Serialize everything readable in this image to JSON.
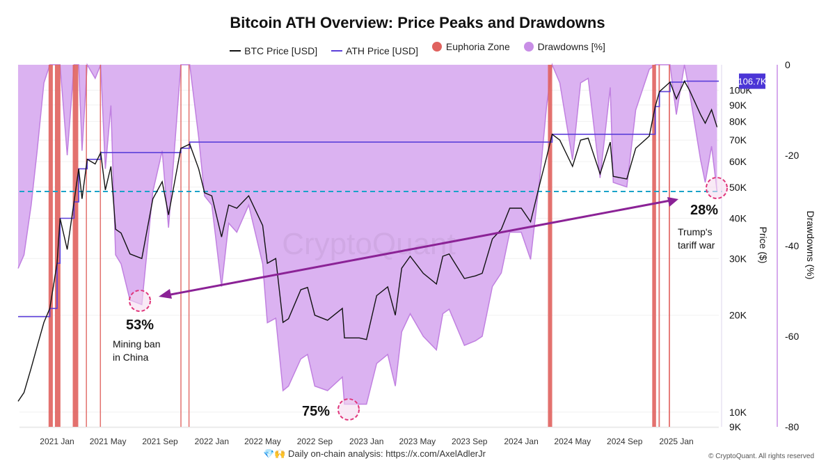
{
  "chart_data": {
    "type": "line",
    "title": "Bitcoin ATH Overview: Price Peaks and Drawdowns",
    "legend": [
      {
        "name": "BTC Price [USD]",
        "color": "#111111"
      },
      {
        "name": "ATH Price [USD]",
        "color": "#5b3fd9"
      },
      {
        "name": "Euphoria Zone",
        "color": "#e0625e"
      },
      {
        "name": "Drawdowns [%]",
        "color": "#c88ee6"
      }
    ],
    "legend_position": "top",
    "x_range": [
      "2020-10-01",
      "2025-04-08"
    ],
    "x_ticks": [
      "2021 Jan",
      "2021 May",
      "2021 Sep",
      "2022 Jan",
      "2022 May",
      "2022 Sep",
      "2023 Jan",
      "2023 May",
      "2023 Sep",
      "2024 Jan",
      "2024 May",
      "2024 Sep",
      "2025 Jan"
    ],
    "y_price": {
      "label": "Price ($)",
      "scale": "log",
      "range": [
        9000,
        120000
      ],
      "ticks": [
        "9K",
        "10K",
        "20K",
        "30K",
        "40K",
        "50K",
        "60K",
        "70K",
        "80K",
        "90K",
        "100K"
      ],
      "tick_values": [
        9000,
        10000,
        20000,
        30000,
        40000,
        50000,
        60000,
        70000,
        80000,
        90000,
        100000
      ]
    },
    "y_drawdown": {
      "label": "Drawdowns (%)",
      "range": [
        -80,
        0
      ],
      "ticks": [
        "0",
        "-20",
        "-40",
        "-60",
        "-80"
      ],
      "tick_values": [
        0,
        -20,
        -40,
        -60,
        -80
      ]
    },
    "last_ath_label": "106.7K",
    "dates": [
      "2020-10-01",
      "2020-10-15",
      "2020-11-01",
      "2020-11-15",
      "2020-12-01",
      "2020-12-15",
      "2021-01-01",
      "2021-01-08",
      "2021-01-25",
      "2021-02-10",
      "2021-02-21",
      "2021-03-01",
      "2021-03-13",
      "2021-04-01",
      "2021-04-14",
      "2021-04-25",
      "2021-05-08",
      "2021-05-19",
      "2021-06-01",
      "2021-06-22",
      "2021-07-20",
      "2021-08-15",
      "2021-09-06",
      "2021-09-21",
      "2021-10-20",
      "2021-11-10",
      "2021-12-01",
      "2021-12-15",
      "2022-01-01",
      "2022-01-24",
      "2022-02-10",
      "2022-03-01",
      "2022-03-29",
      "2022-05-01",
      "2022-05-12",
      "2022-06-01",
      "2022-06-18",
      "2022-07-01",
      "2022-07-30",
      "2022-08-15",
      "2022-09-01",
      "2022-10-01",
      "2022-11-05",
      "2022-11-10",
      "2022-12-15",
      "2023-01-01",
      "2023-01-25",
      "2023-02-20",
      "2023-03-10",
      "2023-03-25",
      "2023-04-14",
      "2023-05-15",
      "2023-06-15",
      "2023-06-30",
      "2023-07-15",
      "2023-08-20",
      "2023-09-15",
      "2023-10-01",
      "2023-10-25",
      "2023-11-15",
      "2023-12-05",
      "2024-01-01",
      "2024-01-23",
      "2024-02-15",
      "2024-03-01",
      "2024-03-14",
      "2024-04-01",
      "2024-05-01",
      "2024-05-20",
      "2024-06-07",
      "2024-07-05",
      "2024-07-29",
      "2024-08-05",
      "2024-09-06",
      "2024-09-27",
      "2024-10-29",
      "2024-11-12",
      "2024-11-22",
      "2024-12-17",
      "2025-01-01",
      "2025-01-20",
      "2025-02-01",
      "2025-02-27",
      "2025-03-10",
      "2025-03-25",
      "2025-04-07"
    ],
    "price": [
      10800,
      11500,
      13700,
      16000,
      19000,
      21000,
      29000,
      40000,
      32000,
      45000,
      57000,
      46000,
      61000,
      59000,
      64000,
      49000,
      58000,
      37000,
      36000,
      31000,
      30000,
      46000,
      52000,
      41000,
      66000,
      68000,
      57000,
      48000,
      47000,
      35000,
      44000,
      43000,
      47000,
      38000,
      29000,
      30000,
      19000,
      19500,
      24000,
      24400,
      20000,
      19300,
      21000,
      17000,
      17000,
      16800,
      23000,
      24500,
      20000,
      28000,
      30500,
      27000,
      25000,
      30500,
      31000,
      26000,
      26500,
      27000,
      34500,
      37000,
      43000,
      43000,
      39000,
      52000,
      62000,
      73000,
      70000,
      58000,
      70000,
      71000,
      55000,
      69000,
      54000,
      53000,
      66000,
      72000,
      89000,
      99000,
      106000,
      94000,
      106700,
      100000,
      84000,
      79000,
      87000,
      76800
    ],
    "ath": [
      19800,
      19800,
      19800,
      19800,
      19800,
      21000,
      29000,
      40000,
      40000,
      45000,
      57000,
      57000,
      61000,
      61000,
      64000,
      64000,
      64000,
      64000,
      64000,
      64000,
      64000,
      64000,
      64000,
      64000,
      66000,
      69000,
      69000,
      69000,
      69000,
      69000,
      69000,
      69000,
      69000,
      69000,
      69000,
      69000,
      69000,
      69000,
      69000,
      69000,
      69000,
      69000,
      69000,
      69000,
      69000,
      69000,
      69000,
      69000,
      69000,
      69000,
      69000,
      69000,
      69000,
      69000,
      69000,
      69000,
      69000,
      69000,
      69000,
      69000,
      69000,
      69000,
      69000,
      69000,
      69000,
      73000,
      73000,
      73000,
      73000,
      73000,
      73000,
      73000,
      73000,
      73000,
      73000,
      73000,
      89000,
      99000,
      106000,
      106000,
      106700,
      106700,
      106700,
      106700,
      106700,
      106700
    ],
    "drawdown": [
      -45,
      -42,
      -31,
      -19,
      -4,
      0,
      0,
      0,
      -20,
      0,
      0,
      -19,
      0,
      -3,
      0,
      -23,
      -9,
      -42,
      -44,
      -52,
      -53,
      -28,
      -19,
      -36,
      0,
      0,
      -16,
      -29,
      -31,
      -49,
      -35,
      -37,
      -31,
      -44,
      -57,
      -56,
      -72,
      -71,
      -65,
      -64,
      -71,
      -72,
      -69,
      -75,
      -75,
      -75,
      -66,
      -64,
      -71,
      -59,
      -55,
      -60,
      -63,
      -55,
      -54,
      -62,
      -61,
      -60,
      -49,
      -46,
      -37,
      -37,
      -43,
      -24,
      -9,
      0,
      -4,
      -21,
      -4,
      -3,
      -25,
      -5,
      -26,
      -27,
      -10,
      -1,
      0,
      0,
      0,
      -11,
      0,
      -6,
      -21,
      -26,
      -18,
      -28
    ],
    "euphoria_zones": [
      [
        "2020-12-12",
        "2020-12-22"
      ],
      [
        "2020-12-27",
        "2021-01-09"
      ],
      [
        "2021-02-07",
        "2021-02-20"
      ],
      [
        "2021-03-10",
        "2021-03-12"
      ],
      [
        "2021-04-12",
        "2021-04-14"
      ],
      [
        "2021-10-19",
        "2021-10-21"
      ],
      [
        "2021-11-07",
        "2021-11-09"
      ],
      [
        "2024-03-04",
        "2024-03-14"
      ],
      [
        "2024-11-05",
        "2024-11-14"
      ],
      [
        "2024-11-20",
        "2024-11-23"
      ],
      [
        "2024-12-14",
        "2024-12-17"
      ]
    ],
    "reference_line": {
      "drawdown": -28,
      "color": "#1aa3c8"
    },
    "annotations": [
      {
        "percent": "53%",
        "text": [
          "Mining ban",
          "in China"
        ],
        "date": "2021-07-20",
        "drawdown": -53
      },
      {
        "percent": "75%",
        "text": [],
        "date": "2022-11-20",
        "drawdown": -75
      },
      {
        "percent": "28%",
        "text": [
          "Trump's",
          "tariff war"
        ],
        "date": "2025-04-07",
        "drawdown": -28
      }
    ]
  },
  "watermark": "CryptoQuant",
  "footer": {
    "emoji": "💎🙌",
    "text": "Daily on-chain analysis: ",
    "link": "https://x.com/AxelAdlerJr"
  },
  "copyright": "© CryptoQuant. All rights reserved"
}
